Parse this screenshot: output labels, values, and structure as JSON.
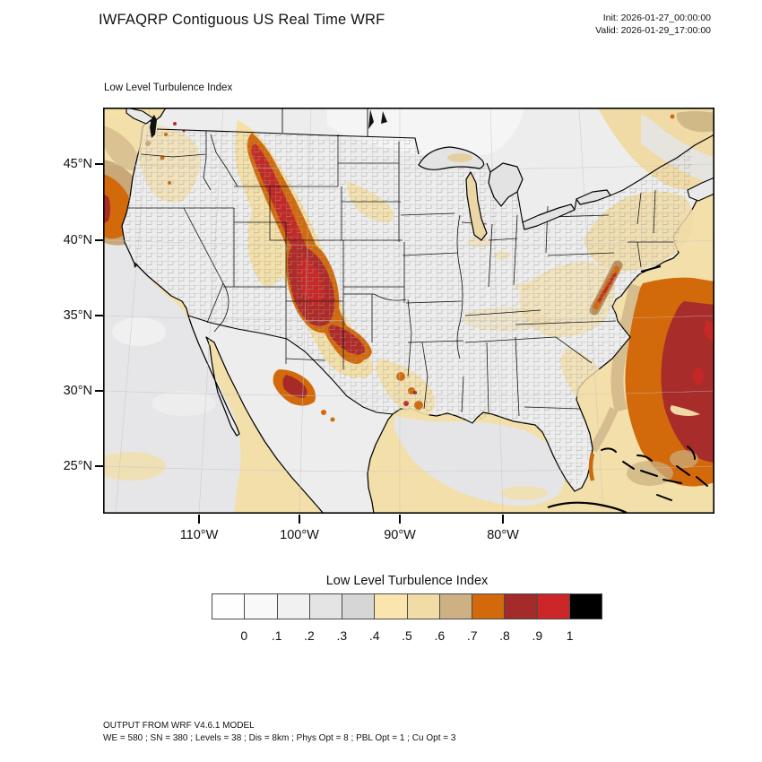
{
  "header": {
    "title": "IWFAQRP Contiguous US Real Time WRF",
    "init_label": "Init: 2026-01-27_00:00:00",
    "valid_label": "Valid: 2026-01-29_17:00:00"
  },
  "map": {
    "field_label": "Low Level Turbulence Index",
    "lat_ticks": [
      "45°N",
      "40°N",
      "35°N",
      "30°N",
      "25°N"
    ],
    "lon_ticks": [
      "110°W",
      "100°W",
      "90°W",
      "80°W"
    ]
  },
  "colorbar": {
    "title": "Low Level Turbulence Index",
    "tick_labels": [
      "0",
      ".1",
      ".2",
      ".3",
      ".4",
      ".5",
      ".6",
      ".7",
      ".8",
      ".9",
      "1"
    ],
    "colors": [
      "#FEFEFE",
      "#F9F9F9",
      "#F1F1F1",
      "#E4E4E4",
      "#D6D6D6",
      "#FBE5AF",
      "#F2DCA6",
      "#CDB183",
      "#D2690B",
      "#A32C2A",
      "#CC2628",
      "#000000"
    ]
  },
  "footer": {
    "line1": "OUTPUT FROM WRF V4.6.1 MODEL",
    "line2": "WE = 580 ; SN = 380 ; Levels = 38 ; Dis = 8km ; Phys Opt = 8 ; PBL Opt = 1 ; Cu Opt = 3"
  }
}
